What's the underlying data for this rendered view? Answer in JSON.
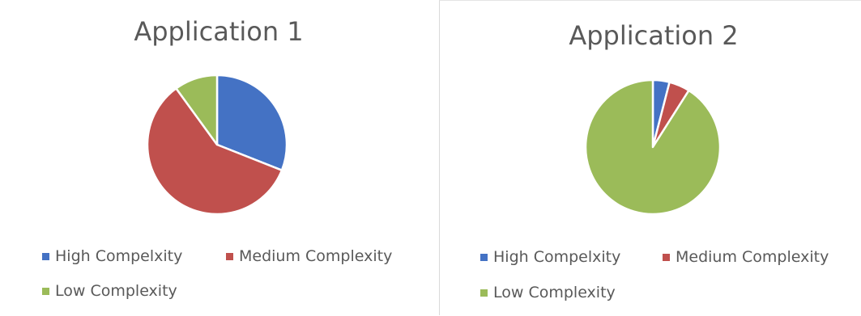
{
  "chart_data": [
    {
      "type": "pie",
      "title": "Application 1",
      "categories": [
        "High Compelxity",
        "Medium Complexity",
        "Low Complexity"
      ],
      "values": [
        31,
        59,
        10
      ],
      "colors": [
        "#4472c4",
        "#c0504d",
        "#9bbb59"
      ],
      "legend": "bottom"
    },
    {
      "type": "pie",
      "title": "Application 2",
      "categories": [
        "High Compelxity",
        "Medium Complexity",
        "Low Complexity"
      ],
      "values": [
        4,
        5,
        91
      ],
      "colors": [
        "#4472c4",
        "#c0504d",
        "#9bbb59"
      ],
      "legend": "bottom"
    }
  ]
}
